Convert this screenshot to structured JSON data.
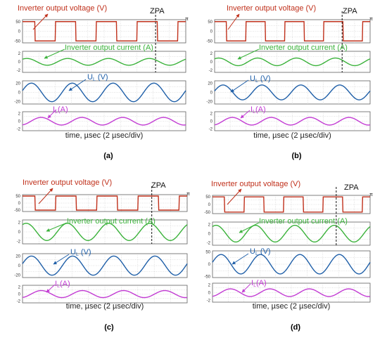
{
  "colors": {
    "voltage": "#c0311c",
    "current": "#3bb23b",
    "ul": "#1f5fa8",
    "il": "#c23bd3",
    "grid": "#b8b8b8",
    "frame": "#606060"
  },
  "shared_labels": {
    "voltage_annotation": "Inverter output voltage (V)",
    "current_annotation": "Inverter output current (A)",
    "ul_annotation_main": "U",
    "ul_annotation_sub": "L",
    "ul_annotation_unit": " (V)",
    "il_annotation_main": "I",
    "il_annotation_sub": "L",
    "il_annotation_unit": "(A)",
    "zpa": "ZPA",
    "pi": "π",
    "xlabel": "time, µsec (2 µsec/div)"
  },
  "chart_data": [
    {
      "type": "line",
      "caption": "(a)",
      "xlabel": "time, µsec (2 µsec/div)",
      "x_unit": "µsec",
      "xlim": [
        0,
        20
      ],
      "zpa_marker_x": 16.3,
      "panels": [
        {
          "name": "Inverter output voltage (V)",
          "ylim": [
            -60,
            60
          ],
          "yticks": [
            "50",
            "0",
            "-50"
          ],
          "waveform": "square",
          "amplitude": 50,
          "period": 5.0,
          "phase": 1.2
        },
        {
          "name": "Inverter output current (A)",
          "ylim": [
            -2.5,
            2.5
          ],
          "yticks": [
            "2",
            "0",
            "-2"
          ],
          "waveform": "sine",
          "amplitude": 0.8,
          "period": 5.0,
          "phase": 0.9
        },
        {
          "name": "UL (V)",
          "ylim": [
            -25,
            25
          ],
          "yticks": [
            "20",
            "0",
            "-20"
          ],
          "waveform": "sine",
          "amplitude": 20,
          "period": 5.0,
          "phase": 0.2
        },
        {
          "name": "IL (A)",
          "ylim": [
            -2.5,
            2.5
          ],
          "yticks": [
            "2",
            "0",
            "-2"
          ],
          "waveform": "sine",
          "amplitude": 1,
          "period": 5.0,
          "phase": -1.3
        }
      ]
    },
    {
      "type": "line",
      "caption": "(b)",
      "xlabel": "time, µsec (2 µsec/div)",
      "x_unit": "µsec",
      "xlim": [
        0,
        20
      ],
      "zpa_marker_x": 16.4,
      "panels": [
        {
          "name": "Inverter output voltage (V)",
          "ylim": [
            -60,
            60
          ],
          "yticks": [
            "50",
            "0",
            "-50"
          ],
          "waveform": "square",
          "amplitude": 50,
          "period": 5.0,
          "phase": 1.2
        },
        {
          "name": "Inverter output current (A)",
          "ylim": [
            -2.5,
            2.5
          ],
          "yticks": [
            "2",
            "0",
            "-2"
          ],
          "waveform": "sine",
          "amplitude": 0.9,
          "period": 5.0,
          "phase": 0.9
        },
        {
          "name": "UL (V)",
          "ylim": [
            -25,
            25
          ],
          "yticks": [
            "20",
            "0",
            "-20"
          ],
          "waveform": "sine",
          "amplitude": 16,
          "period": 5.0,
          "phase": 0.2
        },
        {
          "name": "IL (A)",
          "ylim": [
            -2.5,
            2.5
          ],
          "yticks": [
            "2",
            "0",
            "-2"
          ],
          "waveform": "sine",
          "amplitude": 1,
          "period": 5.0,
          "phase": -1.3
        }
      ]
    },
    {
      "type": "line",
      "caption": "(c)",
      "xlabel": "time, µsec (2 µsec/div)",
      "x_unit": "µsec",
      "xlim": [
        0,
        20
      ],
      "zpa_marker_x": 15.7,
      "panels": [
        {
          "name": "Inverter output voltage (V)",
          "ylim": [
            -60,
            60
          ],
          "yticks": [
            "50",
            "0",
            "-50"
          ],
          "waveform": "square",
          "amplitude": 50,
          "period": 5.0,
          "phase": 1.2
        },
        {
          "name": "Inverter output current (A)",
          "ylim": [
            -2.5,
            2.5
          ],
          "yticks": [
            "2",
            "0",
            "-2"
          ],
          "waveform": "sine",
          "amplitude": 1.8,
          "period": 5.0,
          "phase": 1.0
        },
        {
          "name": "UL (V)",
          "ylim": [
            -25,
            25
          ],
          "yticks": [
            "20",
            "0",
            "-20"
          ],
          "waveform": "sine",
          "amplitude": 20,
          "period": 5.0,
          "phase": 0.2
        },
        {
          "name": "IL (A)",
          "ylim": [
            -2.5,
            2.5
          ],
          "yticks": [
            "2",
            "0",
            "-2"
          ],
          "waveform": "sine",
          "amplitude": 1,
          "period": 5.0,
          "phase": -1.3
        }
      ]
    },
    {
      "type": "line",
      "caption": "(d)",
      "xlabel": "time, µsec (2 µsec/div)",
      "x_unit": "µsec",
      "xlim": [
        0,
        20
      ],
      "zpa_marker_x": 15.7,
      "panels": [
        {
          "name": "Inverter output voltage (V)",
          "ylim": [
            -60,
            60
          ],
          "yticks": [
            "50",
            "0",
            "-50"
          ],
          "waveform": "square",
          "amplitude": 50,
          "period": 5.0,
          "phase": 1.2
        },
        {
          "name": "Inverter output current (A)",
          "ylim": [
            -2.5,
            2.5
          ],
          "yticks": [
            "2",
            "0",
            "-2"
          ],
          "waveform": "sine",
          "amplitude": 1.8,
          "period": 5.0,
          "phase": 1.0
        },
        {
          "name": "UL (V)",
          "ylim": [
            -55,
            55
          ],
          "yticks": [
            "50",
            "0",
            "-50"
          ],
          "waveform": "sine",
          "amplitude": 40,
          "period": 5.0,
          "phase": 0.2
        },
        {
          "name": "IL (A)",
          "ylim": [
            -2.5,
            2.5
          ],
          "yticks": [
            "2",
            "0",
            "-2"
          ],
          "waveform": "sine",
          "amplitude": 1,
          "period": 5.0,
          "phase": -1.3
        }
      ]
    }
  ]
}
